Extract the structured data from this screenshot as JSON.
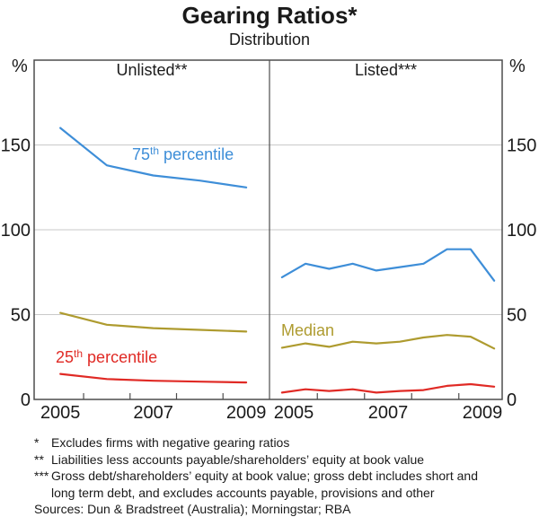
{
  "title": "Gearing Ratios*",
  "subtitle": "Distribution",
  "panels": {
    "left": "Unlisted**",
    "right": "Listed***"
  },
  "axis": {
    "unit": "%",
    "y_tick_labels": [
      "150",
      "100",
      "50",
      "0"
    ],
    "y_tick_values": [
      150,
      100,
      50,
      0
    ],
    "ymax": 200,
    "x_tick_labels": [
      "2005",
      "2007",
      "2009"
    ],
    "x_label_years": [
      2005,
      2007,
      2009
    ],
    "boundary_tick_years": [
      2006,
      2007,
      2008,
      2009
    ]
  },
  "series_labels": {
    "p75": {
      "num": "75",
      "sup": "th",
      "rest": " percentile"
    },
    "p25": {
      "num": "25",
      "sup": "th",
      "rest": " percentile"
    },
    "median": "Median"
  },
  "colors": {
    "p75": "#3E8ED8",
    "median": "#AE9B2F",
    "p25": "#E02A25",
    "grid": "#C9C9C9",
    "frame": "#4D4D4D",
    "text": "#1A1A1A"
  },
  "footnotes": [
    {
      "marker": "*",
      "text": "Excludes firms with negative gearing ratios"
    },
    {
      "marker": "**",
      "text": "Liabilities less accounts payable/shareholders’ equity at book value"
    },
    {
      "marker": "***",
      "text": "Gross debt/shareholders’ equity at book value; gross debt includes short and long term debt, and excludes accounts payable, provisions and other"
    }
  ],
  "sources": "Sources: Dun & Bradstreet (Australia); Morningstar; RBA",
  "chart_data": [
    {
      "type": "line",
      "panel": "Unlisted**",
      "x_unit": "year (annual, mid-year observation)",
      "x": [
        2005,
        2006,
        2007,
        2008,
        2009
      ],
      "ylabel": "%",
      "ylim": [
        0,
        200
      ],
      "yticks": [
        0,
        50,
        100,
        150
      ],
      "grid": true,
      "series": [
        {
          "name": "75th percentile",
          "color_key": "p75",
          "values": [
            160,
            138,
            132,
            129,
            125
          ]
        },
        {
          "name": "Median",
          "color_key": "median",
          "values": [
            51,
            44,
            42,
            41,
            40
          ]
        },
        {
          "name": "25th percentile",
          "color_key": "p25",
          "values": [
            15,
            12,
            11,
            10.5,
            10
          ]
        }
      ]
    },
    {
      "type": "line",
      "panel": "Listed***",
      "x_unit": "half-year",
      "x": [
        2005,
        2005.5,
        2006,
        2006.5,
        2007,
        2007.5,
        2008,
        2008.5,
        2009,
        2009.5
      ],
      "ylabel": "%",
      "ylim": [
        0,
        200
      ],
      "yticks": [
        0,
        50,
        100,
        150
      ],
      "grid": true,
      "series": [
        {
          "name": "75th percentile",
          "color_key": "p75",
          "values": [
            72,
            80,
            77,
            80,
            76,
            78,
            80,
            88.5,
            88.5,
            70
          ]
        },
        {
          "name": "Median",
          "color_key": "median",
          "values": [
            30.5,
            33,
            31,
            34,
            33,
            34,
            36.5,
            38,
            37,
            30
          ]
        },
        {
          "name": "25th percentile",
          "color_key": "p25",
          "values": [
            4,
            6,
            5,
            6,
            4,
            5,
            5.5,
            8,
            9,
            7.5
          ]
        }
      ]
    }
  ]
}
